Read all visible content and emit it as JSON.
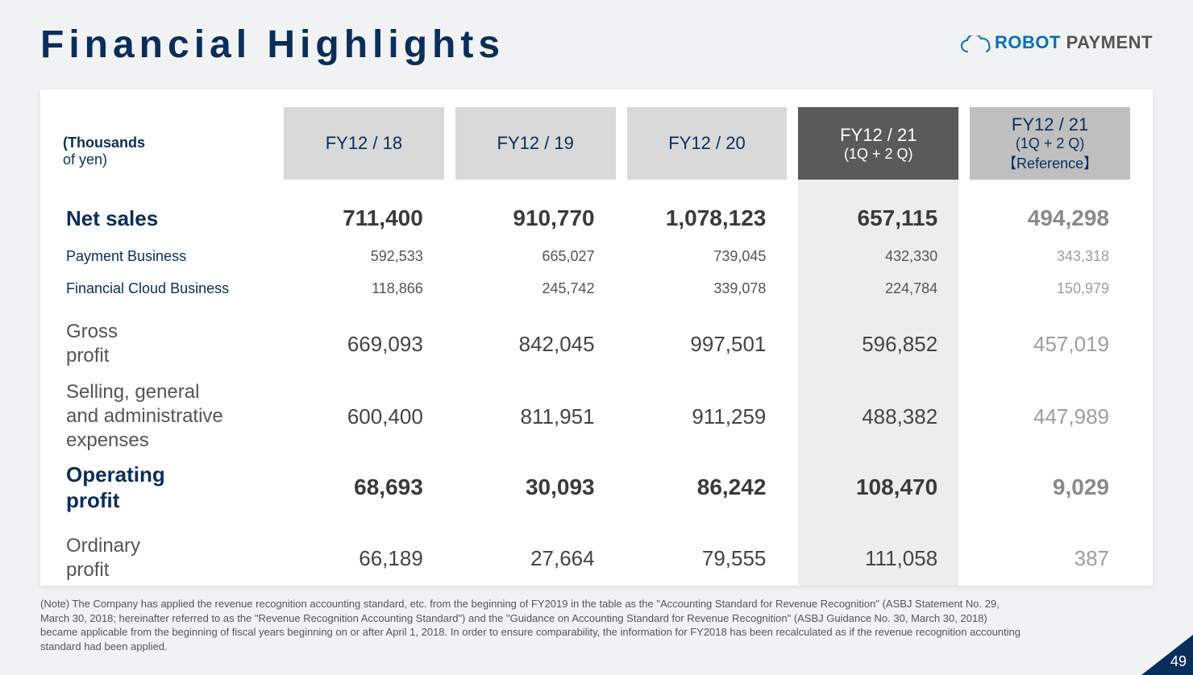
{
  "page": {
    "title": "Financial Highlights",
    "number": "49",
    "background_color": "#f1f2f4",
    "corner_color": "#0a2e5c"
  },
  "logo": {
    "word1": "ROBOT",
    "word2": " PAYMENT",
    "word1_color": "#0071bc",
    "word2_color": "#555555",
    "cloud_stroke": "#0071bc"
  },
  "table": {
    "type": "table",
    "unit_label_bold": "(Thousands",
    "unit_label_rest": "of yen)",
    "columns": [
      {
        "label": "FY12 / 18",
        "sub": "",
        "style": "period"
      },
      {
        "label": "FY12 / 19",
        "sub": "",
        "style": "period"
      },
      {
        "label": "FY12 / 20",
        "sub": "",
        "style": "period"
      },
      {
        "label": "FY12 / 21",
        "sub": "(1Q + 2 Q)",
        "style": "current"
      },
      {
        "label": "FY12 / 21",
        "sub": "(1Q + 2 Q)\n【Reference】",
        "style": "reference"
      }
    ],
    "header_colors": {
      "period": "#d9d9d9",
      "current": "#5a5a5a",
      "reference": "#bfbfbf"
    },
    "column_bg_colors": {
      "current": "#ededed",
      "reference": "#ffffff"
    },
    "rows": [
      {
        "kind": "major",
        "label": "Net sales",
        "values": [
          "711,400",
          "910,770",
          "1,078,123",
          "657,115",
          "494,298"
        ]
      },
      {
        "kind": "sub",
        "label": "Payment Business",
        "values": [
          "592,533",
          "665,027",
          "739,045",
          "432,330",
          "343,318"
        ]
      },
      {
        "kind": "sub",
        "label": "Financial Cloud Business",
        "values": [
          "118,866",
          "245,742",
          "339,078",
          "224,784",
          "150,979"
        ]
      },
      {
        "kind": "plain",
        "label": "Gross\nprofit",
        "values": [
          "669,093",
          "842,045",
          "997,501",
          "596,852",
          "457,019"
        ]
      },
      {
        "kind": "plain",
        "label": "Selling, general\nand administrative\nexpenses",
        "values": [
          "600,400",
          "811,951",
          "911,259",
          "488,382",
          "447,989"
        ]
      },
      {
        "kind": "major",
        "label": "Operating\nprofit",
        "values": [
          "68,693",
          "30,093",
          "86,242",
          "108,470",
          "9,029"
        ]
      },
      {
        "kind": "plain",
        "label": "Ordinary\nprofit",
        "values": [
          "66,189",
          "27,664",
          "79,555",
          "111,058",
          "387"
        ]
      }
    ],
    "text_colors": {
      "major_label": "#0a2e5c",
      "sub_label": "#0a2e5c",
      "plain_label": "#555555",
      "value": "#444444",
      "value_bold": "#3a3a3a",
      "value_ref": "#9e9e9e"
    },
    "fontsizes": {
      "title": 48,
      "header": 22,
      "major_label": 26,
      "plain_label": 24,
      "sub_label": 18,
      "value": 26,
      "value_bold": 28,
      "value_sub": 18,
      "footnote": 13
    }
  },
  "footnote": "(Note) The Company has applied the revenue recognition accounting standard, etc. from the beginning of FY2019 in the table as the \"Accounting Standard for Revenue Recognition\" (ASBJ Statement No. 29, March 30, 2018; hereinafter referred to as the \"Revenue Recognition Accounting Standard\") and the \"Guidance on Accounting Standard for Revenue Recognition\" (ASBJ Guidance No. 30, March 30, 2018) became applicable from the beginning of fiscal years beginning on or after April 1, 2018. In order to ensure comparability, the information for FY2018 has been recalculated as if the revenue recognition accounting standard had been applied."
}
